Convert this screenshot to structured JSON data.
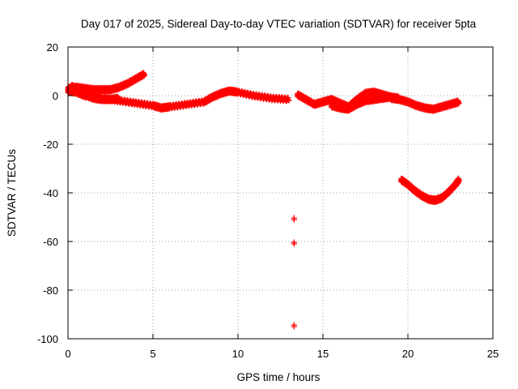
{
  "chart_data": {
    "type": "scatter",
    "title": "Day 017 of 2025, Sidereal Day-to-day VTEC variation (SDTVAR) for receiver 5pta",
    "xlabel": "GPS time / hours",
    "ylabel": "SDTVAR / TECUs",
    "xlim": [
      0,
      25
    ],
    "ylim": [
      -100,
      20
    ],
    "xticks": [
      0,
      5,
      10,
      15,
      20,
      25
    ],
    "yticks": [
      -100,
      -80,
      -60,
      -40,
      -20,
      0,
      20
    ],
    "grid": true,
    "marker": "plus",
    "color": "#ff0000",
    "series": [
      {
        "name": "arc-early-rising",
        "x": [
          0.0,
          0.5,
          1.0,
          1.5,
          2.0,
          2.5,
          3.0,
          3.5,
          4.0,
          4.5
        ],
        "y": [
          2.5,
          3.0,
          2.5,
          2.0,
          2.0,
          2.0,
          3.0,
          4.5,
          6.5,
          8.5
        ]
      },
      {
        "name": "arc-early-dip",
        "x": [
          0.2,
          0.6,
          1.0,
          1.5,
          2.0,
          2.5,
          3.0
        ],
        "y": [
          3.5,
          2.0,
          0.0,
          -1.5,
          -2.0,
          -2.0,
          -1.5
        ]
      },
      {
        "name": "arc-main",
        "x": [
          0.0,
          0.5,
          1.0,
          2.0,
          3.0,
          4.0,
          5.0,
          5.5,
          6.0,
          7.0,
          8.0,
          8.5,
          9.0,
          9.5,
          10.0,
          11.0,
          12.0,
          13.0
        ],
        "y": [
          1.5,
          1.0,
          -0.5,
          -1.5,
          -2.5,
          -3.5,
          -4.5,
          -5.5,
          -5.0,
          -4.0,
          -3.0,
          -1.0,
          0.5,
          1.5,
          1.0,
          -0.5,
          -1.5,
          -2.0
        ]
      },
      {
        "name": "arc-mid",
        "x": [
          13.5,
          14.0,
          14.5,
          15.0,
          15.5,
          16.0,
          16.5,
          17.0,
          17.5,
          18.0,
          18.5,
          19.0
        ],
        "y": [
          0.0,
          -2.0,
          -4.0,
          -3.0,
          -2.0,
          -3.5,
          -5.0,
          -2.0,
          0.5,
          1.0,
          0.0,
          -1.0
        ]
      },
      {
        "name": "arc-mid-low",
        "x": [
          15.5,
          16.0,
          16.5,
          17.0,
          17.5,
          18.0,
          18.5,
          19.0,
          19.5
        ],
        "y": [
          -4.5,
          -5.5,
          -6.0,
          -4.0,
          -2.5,
          -2.0,
          -1.5,
          -1.0,
          -1.5
        ]
      },
      {
        "name": "arc-late",
        "x": [
          19.0,
          19.5,
          20.0,
          20.5,
          21.0,
          21.5,
          22.0,
          22.5,
          23.0
        ],
        "y": [
          -1.5,
          -2.0,
          -3.0,
          -4.5,
          -5.5,
          -6.0,
          -5.0,
          -4.0,
          -3.0
        ]
      },
      {
        "name": "arc-negative",
        "x": [
          19.6,
          20.0,
          20.4,
          20.8,
          21.2,
          21.6,
          22.0,
          22.4,
          22.8,
          23.0
        ],
        "y": [
          -35.0,
          -37.0,
          -39.5,
          -41.5,
          -43.0,
          -43.5,
          -42.5,
          -40.0,
          -37.0,
          -35.0
        ]
      },
      {
        "name": "outliers",
        "x": [
          13.3,
          13.3,
          13.3
        ],
        "y": [
          -51.0,
          -61.0,
          -95.0
        ]
      }
    ]
  }
}
